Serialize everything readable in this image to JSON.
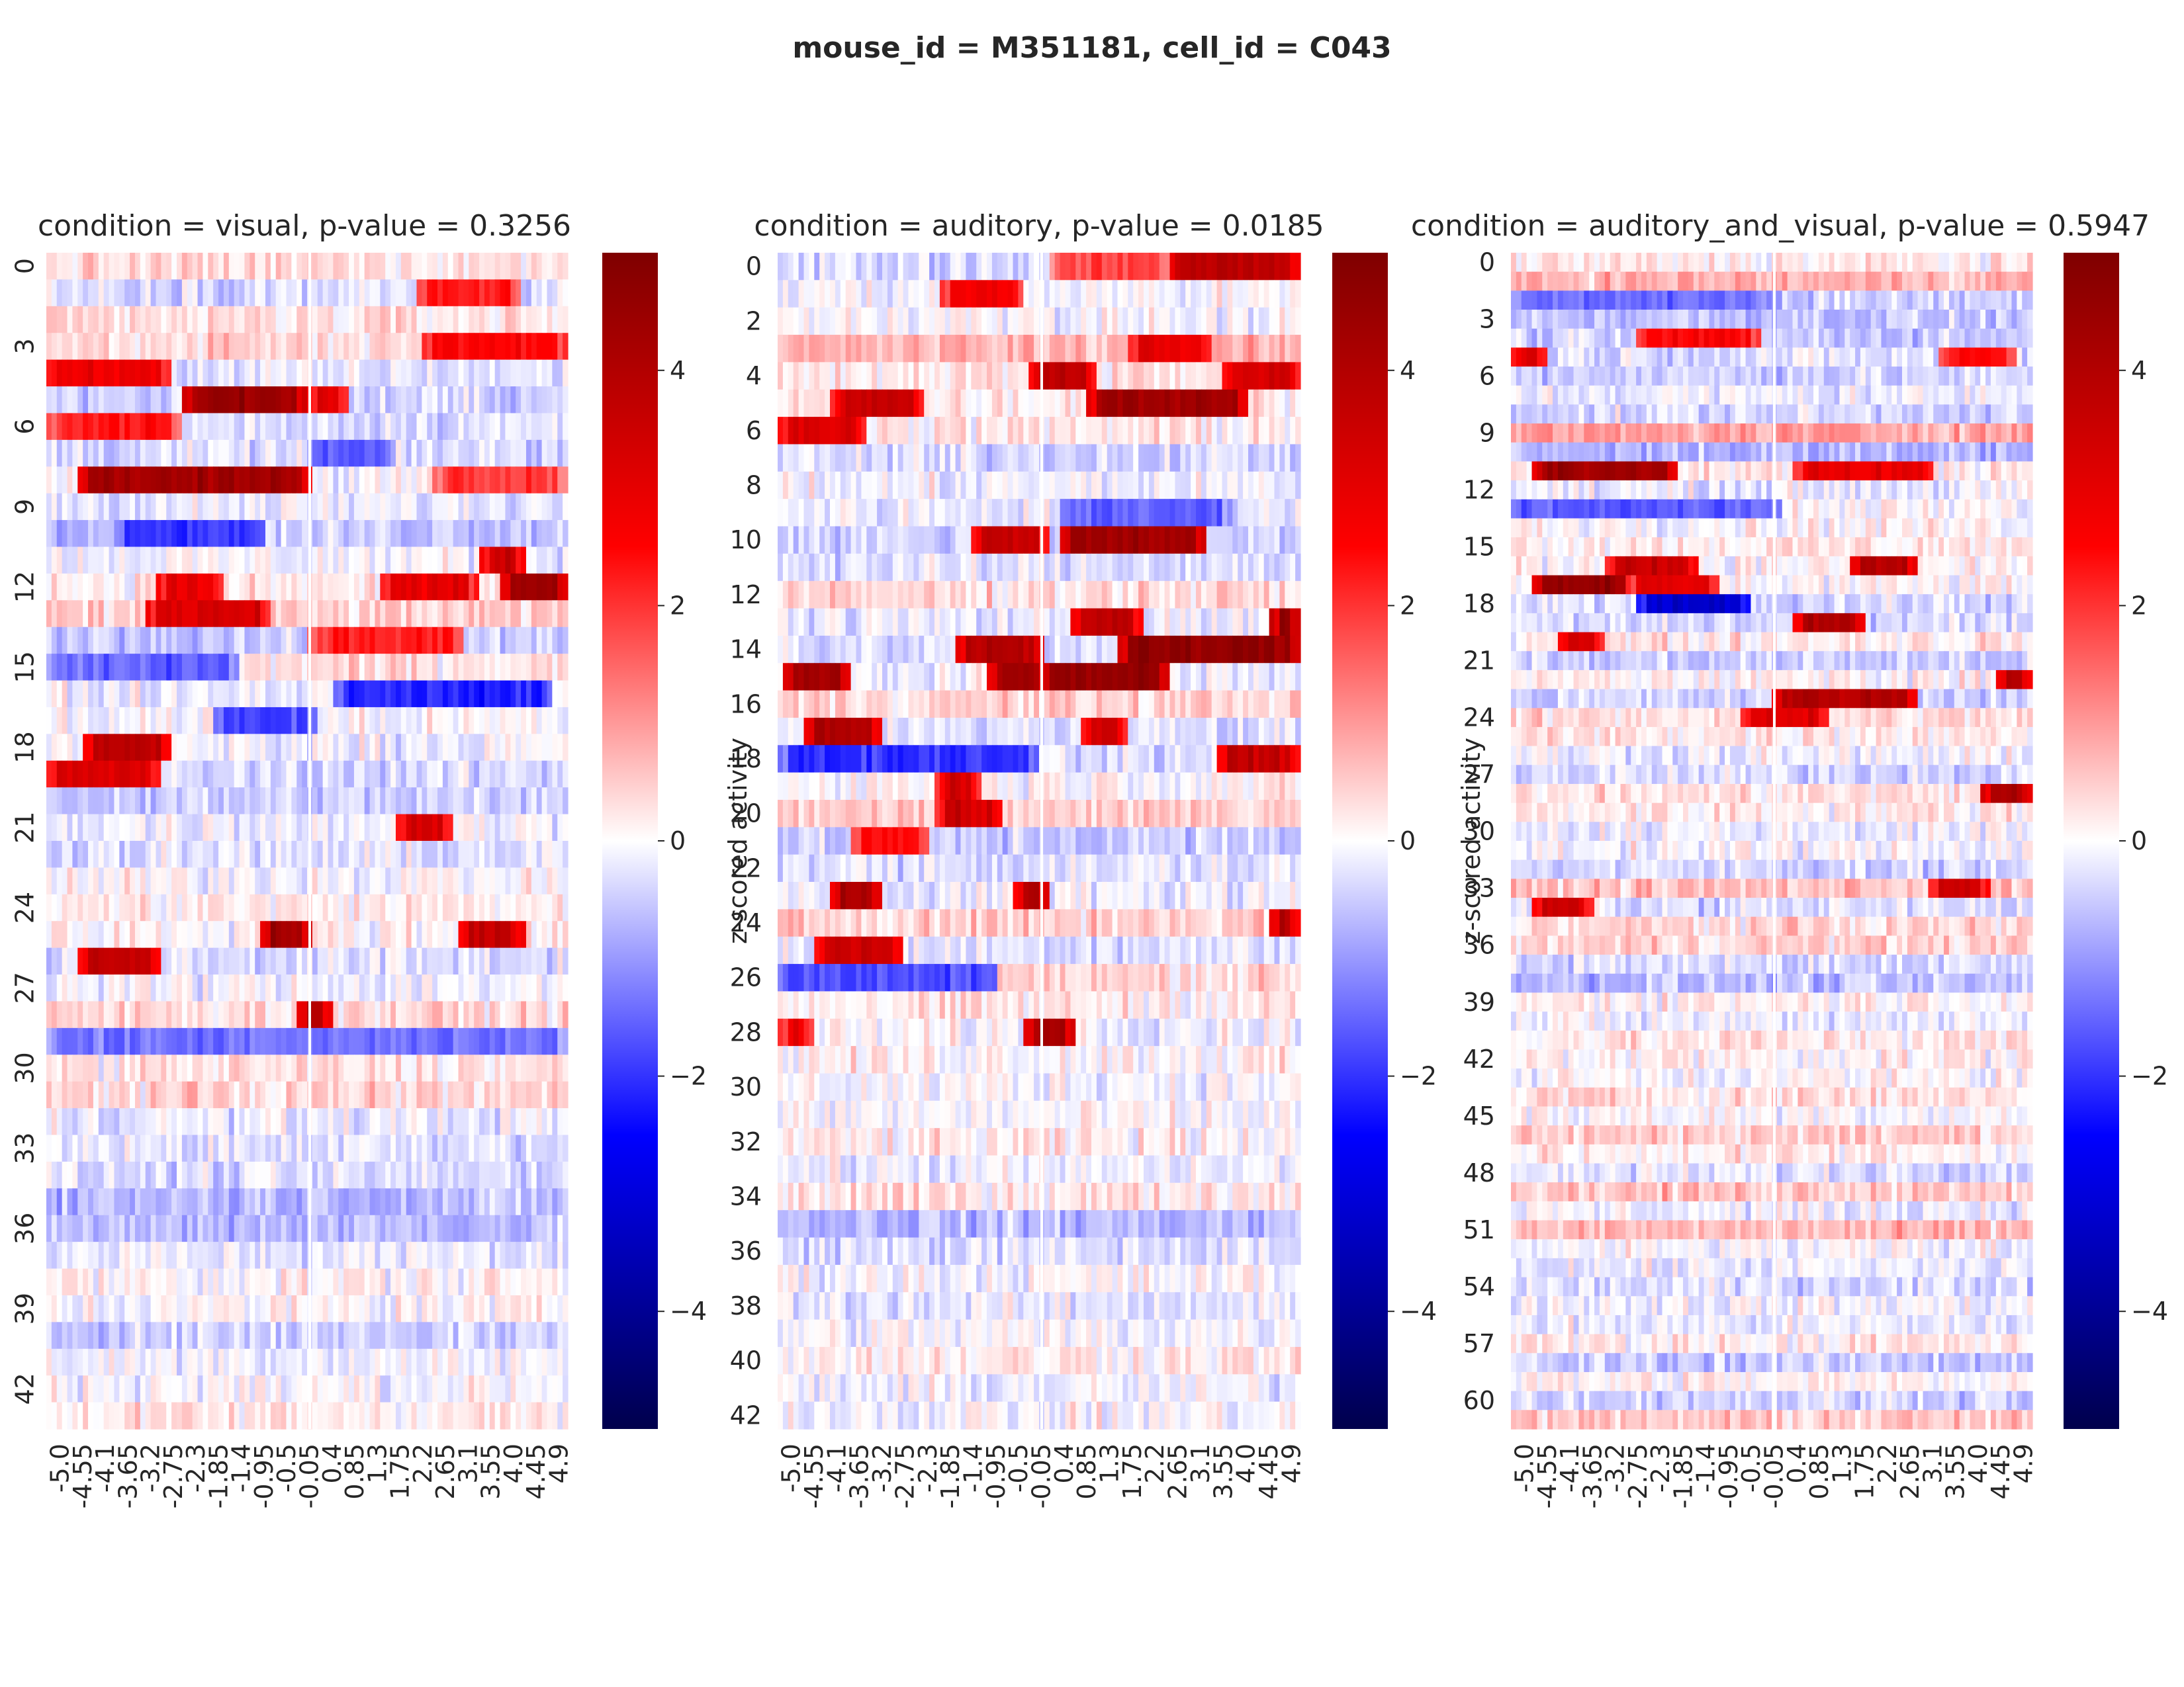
{
  "figure": {
    "suptitle": "mouse_id = M351181, cell_id = C043"
  },
  "colormap": {
    "name": "seismic",
    "stops": [
      "#00004c",
      "#0000ff",
      "#ffffff",
      "#ff0000",
      "#7f0000"
    ]
  },
  "chart_data": [
    {
      "type": "heatmap",
      "title": "condition = visual, p-value = 0.3256",
      "xlabel": "",
      "ylabel": "",
      "n_rows": 44,
      "x_ticklabels": [
        "-5.0",
        "-4.55",
        "-4.1",
        "-3.65",
        "-3.2",
        "-2.75",
        "-2.3",
        "-1.85",
        "-1.4",
        "-0.95",
        "-0.5",
        "-0.05",
        "0.4",
        "0.85",
        "1.3",
        "1.75",
        "2.2",
        "2.65",
        "3.1",
        "3.55",
        "4.0",
        "4.45",
        "4.9"
      ],
      "y_ticklabels": [
        "0",
        "3",
        "6",
        "9",
        "12",
        "15",
        "18",
        "21",
        "24",
        "27",
        "30",
        "33",
        "36",
        "39",
        "42"
      ],
      "y_tick_step": 3,
      "colorbar": {
        "vmin": -5,
        "vmax": 5,
        "ticks": [
          "4",
          "2",
          "0",
          "−2",
          "−4"
        ]
      },
      "x_range": [
        -5.0,
        4.9
      ],
      "strong_responses": [
        {
          "trial": 4,
          "t_start": -5.0,
          "t_end": -2.75,
          "z": 2.8
        },
        {
          "trial": 5,
          "t_start": -2.4,
          "t_end": -0.2,
          "z": 4.5
        },
        {
          "trial": 5,
          "t_start": 0.0,
          "t_end": 0.6,
          "z": 3.2
        },
        {
          "trial": 6,
          "t_start": -5.0,
          "t_end": -2.6,
          "z": 2.4
        },
        {
          "trial": 8,
          "t_start": -4.4,
          "t_end": -0.1,
          "z": 4.3
        },
        {
          "trial": 8,
          "t_start": 2.4,
          "t_end": 4.9,
          "z": 2.0
        },
        {
          "trial": 3,
          "t_start": 2.2,
          "t_end": 4.9,
          "z": 2.6
        },
        {
          "trial": 1,
          "t_start": 2.1,
          "t_end": 3.9,
          "z": 2.2
        },
        {
          "trial": 12,
          "t_start": 3.7,
          "t_end": 4.9,
          "z": 4.5
        },
        {
          "trial": 12,
          "t_start": 1.4,
          "t_end": 3.1,
          "z": 3.0
        },
        {
          "trial": 12,
          "t_start": -2.9,
          "t_end": -1.8,
          "z": 3.0
        },
        {
          "trial": 13,
          "t_start": -3.1,
          "t_end": -0.9,
          "z": 3.3
        },
        {
          "trial": 14,
          "t_start": 0.0,
          "t_end": 2.8,
          "z": 2.2
        },
        {
          "trial": 18,
          "t_start": -4.3,
          "t_end": -2.8,
          "z": 3.8
        },
        {
          "trial": 19,
          "t_start": -5.0,
          "t_end": -3.0,
          "z": 3.2
        },
        {
          "trial": 21,
          "t_start": 1.7,
          "t_end": 2.6,
          "z": 3.3
        },
        {
          "trial": 25,
          "t_start": -0.9,
          "t_end": -0.1,
          "z": 4.2
        },
        {
          "trial": 25,
          "t_start": 2.9,
          "t_end": 4.0,
          "z": 3.6
        },
        {
          "trial": 26,
          "t_start": -4.4,
          "t_end": -3.0,
          "z": 3.7
        },
        {
          "trial": 28,
          "t_start": -0.2,
          "t_end": 0.3,
          "z": 4.0
        },
        {
          "trial": 11,
          "t_start": 3.3,
          "t_end": 4.0,
          "z": 3.4
        },
        {
          "trial": 10,
          "t_start": -3.7,
          "t_end": -1.0,
          "z": -2.0
        },
        {
          "trial": 16,
          "t_start": 0.5,
          "t_end": 4.5,
          "z": -2.2
        },
        {
          "trial": 17,
          "t_start": -1.8,
          "t_end": 0.0,
          "z": -1.8
        },
        {
          "trial": 29,
          "t_start": -5.0,
          "t_end": 4.9,
          "z": -1.4
        },
        {
          "trial": 7,
          "t_start": 0.0,
          "t_end": 1.5,
          "z": -1.6
        },
        {
          "trial": 15,
          "t_start": -5.0,
          "t_end": -1.5,
          "z": -1.5
        }
      ]
    },
    {
      "type": "heatmap",
      "title": "condition = auditory, p-value = 0.0185",
      "xlabel": "",
      "ylabel": "z-scored activity",
      "n_rows": 43,
      "x_ticklabels": [
        "-5.0",
        "-4.55",
        "-4.1",
        "-3.65",
        "-3.2",
        "-2.75",
        "-2.3",
        "-1.85",
        "-1.4",
        "-0.95",
        "-0.5",
        "-0.05",
        "0.4",
        "0.85",
        "1.3",
        "1.75",
        "2.2",
        "2.65",
        "3.1",
        "3.55",
        "4.0",
        "4.45",
        "4.9"
      ],
      "y_ticklabels": [
        "0",
        "2",
        "4",
        "6",
        "8",
        "10",
        "12",
        "14",
        "16",
        "18",
        "20",
        "22",
        "24",
        "26",
        "28",
        "30",
        "32",
        "34",
        "36",
        "38",
        "40",
        "42"
      ],
      "y_tick_step": 2,
      "colorbar": {
        "vmin": -5,
        "vmax": 5,
        "ticks": [
          "4",
          "2",
          "0",
          "−2",
          "−4"
        ]
      },
      "x_range": [
        -5.0,
        4.9
      ],
      "strong_responses": [
        {
          "trial": 0,
          "t_start": 2.4,
          "t_end": 4.9,
          "z": 3.8
        },
        {
          "trial": 0,
          "t_start": 0.2,
          "t_end": 2.3,
          "z": 1.8
        },
        {
          "trial": 1,
          "t_start": -1.9,
          "t_end": -0.5,
          "z": 2.8
        },
        {
          "trial": 3,
          "t_start": 1.7,
          "t_end": 3.1,
          "z": 3.0
        },
        {
          "trial": 4,
          "t_start": -0.2,
          "t_end": 0.9,
          "z": 3.8
        },
        {
          "trial": 4,
          "t_start": 3.5,
          "t_end": 4.9,
          "z": 3.4
        },
        {
          "trial": 5,
          "t_start": -4.0,
          "t_end": -2.4,
          "z": 3.5
        },
        {
          "trial": 5,
          "t_start": 0.9,
          "t_end": 3.8,
          "z": 4.4
        },
        {
          "trial": 6,
          "t_start": -5.0,
          "t_end": -3.5,
          "z": 3.2
        },
        {
          "trial": 10,
          "t_start": -1.3,
          "t_end": 0.0,
          "z": 3.6
        },
        {
          "trial": 10,
          "t_start": 0.4,
          "t_end": 3.0,
          "z": 4.4
        },
        {
          "trial": 9,
          "t_start": 0.4,
          "t_end": 3.5,
          "z": -1.6
        },
        {
          "trial": 13,
          "t_start": 0.6,
          "t_end": 1.8,
          "z": 3.8
        },
        {
          "trial": 14,
          "t_start": -1.6,
          "t_end": -0.1,
          "z": 4.0
        },
        {
          "trial": 14,
          "t_start": 1.5,
          "t_end": 4.9,
          "z": 4.6
        },
        {
          "trial": 15,
          "t_start": -4.9,
          "t_end": -3.8,
          "z": 4.4
        },
        {
          "trial": 15,
          "t_start": -1.0,
          "t_end": 0.0,
          "z": 4.4
        },
        {
          "trial": 15,
          "t_start": 0.0,
          "t_end": 2.3,
          "z": 4.6
        },
        {
          "trial": 17,
          "t_start": -4.5,
          "t_end": -3.2,
          "z": 4.0
        },
        {
          "trial": 17,
          "t_start": 0.8,
          "t_end": 1.5,
          "z": 3.4
        },
        {
          "trial": 18,
          "t_start": -5.0,
          "t_end": -0.2,
          "z": -2.0
        },
        {
          "trial": 18,
          "t_start": 3.4,
          "t_end": 4.9,
          "z": 3.6
        },
        {
          "trial": 19,
          "t_start": -2.0,
          "t_end": -1.3,
          "z": 3.3
        },
        {
          "trial": 20,
          "t_start": -2.0,
          "t_end": -0.9,
          "z": 3.4
        },
        {
          "trial": 21,
          "t_start": -3.6,
          "t_end": -2.3,
          "z": 2.4
        },
        {
          "trial": 23,
          "t_start": -4.0,
          "t_end": -3.2,
          "z": 4.2
        },
        {
          "trial": 23,
          "t_start": -0.5,
          "t_end": 0.0,
          "z": 4.0
        },
        {
          "trial": 25,
          "t_start": -4.3,
          "t_end": -2.8,
          "z": 3.6
        },
        {
          "trial": 26,
          "t_start": -5.0,
          "t_end": -1.0,
          "z": -1.8
        },
        {
          "trial": 28,
          "t_start": -0.3,
          "t_end": 0.5,
          "z": 4.2
        },
        {
          "trial": 28,
          "t_start": -5.0,
          "t_end": -4.5,
          "z": 3.0
        },
        {
          "trial": 13,
          "t_start": 4.4,
          "t_end": 4.9,
          "z": 4.6
        },
        {
          "trial": 24,
          "t_start": 4.4,
          "t_end": 4.9,
          "z": 4.0
        }
      ]
    },
    {
      "type": "heatmap",
      "title": "condition = auditory_and_visual, p-value = 0.5947",
      "xlabel": "",
      "ylabel": "z-scored activity",
      "n_rows": 62,
      "x_ticklabels": [
        "-5.0",
        "-4.55",
        "-4.1",
        "-3.65",
        "-3.2",
        "-2.75",
        "-2.3",
        "-1.85",
        "-1.4",
        "-0.95",
        "-0.5",
        "-0.05",
        "0.4",
        "0.85",
        "1.3",
        "1.75",
        "2.2",
        "2.65",
        "3.1",
        "3.55",
        "4.0",
        "4.45",
        "4.9"
      ],
      "y_ticklabels": [
        "0",
        "3",
        "6",
        "9",
        "12",
        "15",
        "18",
        "21",
        "24",
        "27",
        "30",
        "33",
        "36",
        "39",
        "42",
        "45",
        "48",
        "51",
        "54",
        "57",
        "60"
      ],
      "y_tick_step": 3,
      "colorbar": {
        "vmin": -5,
        "vmax": 5,
        "ticks": [
          "4",
          "2",
          "0",
          "−2",
          "−4"
        ]
      },
      "x_range": [
        -5.0,
        4.9
      ],
      "strong_responses": [
        {
          "trial": 11,
          "t_start": -4.6,
          "t_end": -2.0,
          "z": 4.4
        },
        {
          "trial": 11,
          "t_start": 0.4,
          "t_end": 2.9,
          "z": 3.0
        },
        {
          "trial": 16,
          "t_start": 1.5,
          "t_end": 2.6,
          "z": 4.0
        },
        {
          "trial": 16,
          "t_start": -3.2,
          "t_end": -1.6,
          "z": 3.5
        },
        {
          "trial": 17,
          "t_start": -4.6,
          "t_end": -2.6,
          "z": 4.5
        },
        {
          "trial": 17,
          "t_start": -2.8,
          "t_end": -1.2,
          "z": 3.0
        },
        {
          "trial": 18,
          "t_start": -2.6,
          "t_end": -0.6,
          "z": -3.2
        },
        {
          "trial": 19,
          "t_start": 0.4,
          "t_end": 1.6,
          "z": 4.0
        },
        {
          "trial": 20,
          "t_start": -4.1,
          "t_end": -3.4,
          "z": 3.4
        },
        {
          "trial": 22,
          "t_start": 4.3,
          "t_end": 4.9,
          "z": 4.0
        },
        {
          "trial": 23,
          "t_start": 0.0,
          "t_end": 2.6,
          "z": 4.0
        },
        {
          "trial": 24,
          "t_start": -0.6,
          "t_end": 0.9,
          "z": 3.2
        },
        {
          "trial": 28,
          "t_start": 4.0,
          "t_end": 4.9,
          "z": 4.2
        },
        {
          "trial": 34,
          "t_start": -4.6,
          "t_end": -3.6,
          "z": 3.4
        },
        {
          "trial": 33,
          "t_start": 3.0,
          "t_end": 4.0,
          "z": 3.4
        },
        {
          "trial": 5,
          "t_start": -5.0,
          "t_end": -4.5,
          "z": 3.4
        },
        {
          "trial": 4,
          "t_start": -2.6,
          "t_end": -0.4,
          "z": 2.6
        },
        {
          "trial": 5,
          "t_start": 3.2,
          "t_end": 4.5,
          "z": 2.4
        },
        {
          "trial": 13,
          "t_start": -5.0,
          "t_end": 0.0,
          "z": -1.6
        },
        {
          "trial": 2,
          "t_start": -5.0,
          "t_end": 0.0,
          "z": -1.4
        }
      ]
    }
  ]
}
